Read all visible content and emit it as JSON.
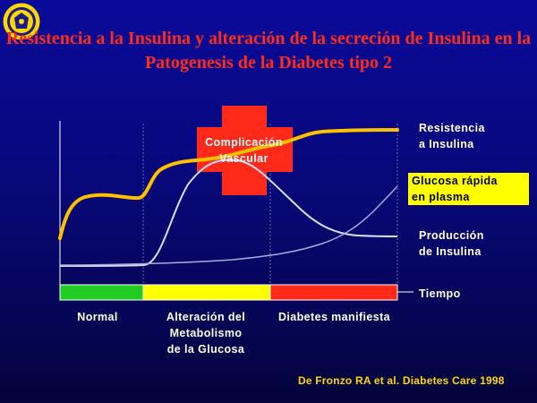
{
  "title": "Resistencia a la Insulina y alteración de la secreción de Insulina en la Patogenesis de la Diabetes tipo 2",
  "labels": {
    "resistencia": "Resistencia\n a Insulina",
    "glucosa": "Glucosa rápida\nen plasma",
    "produccion": "Producción\nde Insulina",
    "tiempo": "Tiempo",
    "complicacion": "Complicación\nVascular"
  },
  "stages": [
    {
      "label": "Normal",
      "color": "#22cc22"
    },
    {
      "label": "Alteración del\nMetabolismo\nde la Glucosa",
      "color": "#ffff00"
    },
    {
      "label": "Diabetes manifiesta",
      "color": "#ff2a1a"
    }
  ],
  "citation": "De Fronzo RA et al. Diabetes Care 1998",
  "colors": {
    "title": "#ff2a1a",
    "resistencia_curve": "#ffc000",
    "glucosa_curve": "#d8dcff",
    "produccion_curve": "#a8acd8",
    "cross": "#ff2a1a",
    "citation": "#ffd700"
  },
  "logo_icon": "university-seal"
}
